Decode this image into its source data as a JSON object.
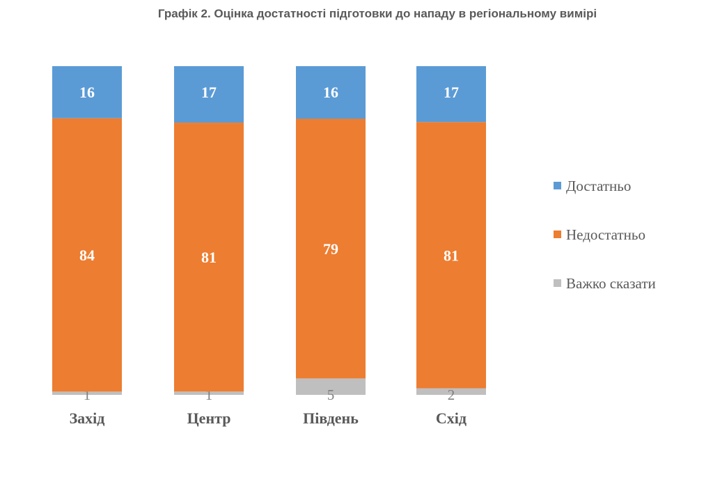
{
  "chart_data": {
    "type": "bar",
    "stacked": true,
    "title": "Графік 2. Оцінка достатності підготовки до нападу в регіональному вимірі",
    "categories": [
      "Захід",
      "Центр",
      "Південь",
      "Схід"
    ],
    "series": [
      {
        "name": "Важко сказати",
        "color": "#BFBFBF",
        "values": [
          1,
          1,
          5,
          2
        ]
      },
      {
        "name": "Недостатньо",
        "color": "#ED7D31",
        "values": [
          84,
          81,
          79,
          81
        ]
      },
      {
        "name": "Достатньо",
        "color": "#5B9BD5",
        "values": [
          16,
          17,
          16,
          17
        ]
      }
    ],
    "legend": {
      "placement": "right",
      "order": [
        "Достатньо",
        "Недостатньо",
        "Важко сказати"
      ]
    },
    "xlabel": "",
    "ylabel": "",
    "grid": false
  }
}
